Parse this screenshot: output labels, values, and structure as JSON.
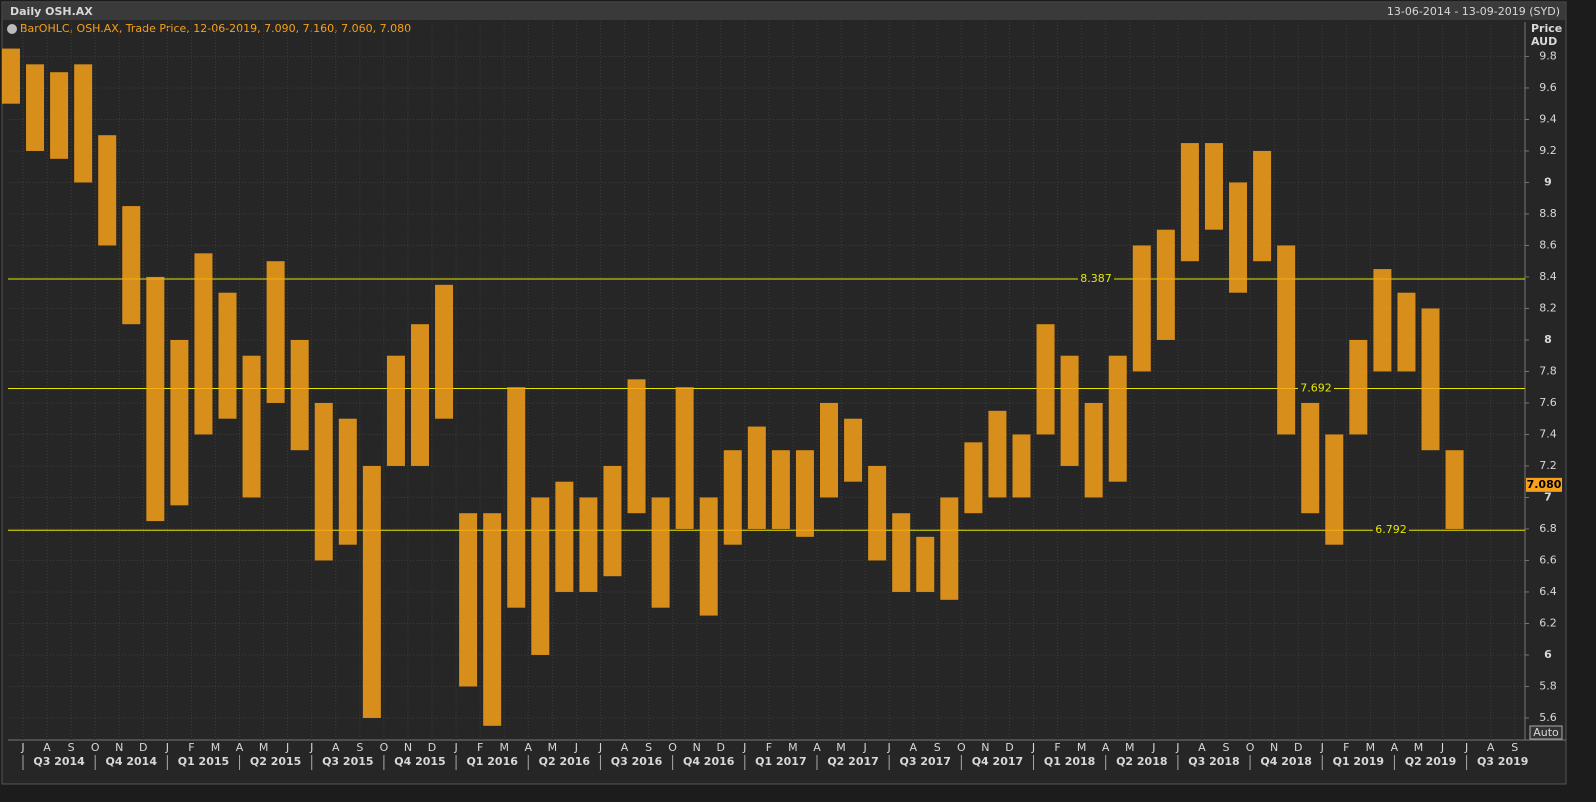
{
  "chart_data": {
    "type": "ohlc",
    "title": "Daily OSH.AX",
    "date_range": "13-06-2014 - 13-09-2019 (SYD)",
    "legend": "BarOHLC, OSH.AX, Trade Price, 12-06-2019, 7.090, 7.160, 7.060, 7.080",
    "y_title": [
      "Price",
      "AUD"
    ],
    "auto_button": "Auto",
    "x": [
      "2014-06",
      "2014-07",
      "2014-08",
      "2014-09",
      "2014-10",
      "2014-11",
      "2014-12",
      "2015-01",
      "2015-02",
      "2015-03",
      "2015-04",
      "2015-05",
      "2015-06",
      "2015-07",
      "2015-08",
      "2015-09",
      "2015-10",
      "2015-11",
      "2015-12",
      "2016-01",
      "2016-02",
      "2016-03",
      "2016-04",
      "2016-05",
      "2016-06",
      "2016-07",
      "2016-08",
      "2016-09",
      "2016-10",
      "2016-11",
      "2016-12",
      "2017-01",
      "2017-02",
      "2017-03",
      "2017-04",
      "2017-05",
      "2017-06",
      "2017-07",
      "2017-08",
      "2017-09",
      "2017-10",
      "2017-11",
      "2017-12",
      "2018-01",
      "2018-02",
      "2018-03",
      "2018-04",
      "2018-05",
      "2018-06",
      "2018-07",
      "2018-08",
      "2018-09",
      "2018-10",
      "2018-11",
      "2018-12",
      "2019-01",
      "2019-02",
      "2019-03",
      "2019-04",
      "2019-05",
      "2019-06"
    ],
    "series": [
      {
        "color": "#f7a11a",
        "high": [
          9.85,
          9.75,
          9.7,
          9.75,
          9.3,
          8.85,
          8.4,
          8.0,
          8.55,
          8.3,
          7.9,
          8.5,
          8.0,
          7.6,
          7.5,
          7.2,
          7.9,
          8.1,
          8.35,
          6.9,
          6.9,
          7.7,
          7.0,
          7.1,
          7.0,
          7.2,
          7.75,
          7.0,
          7.7,
          7.0,
          7.3,
          7.45,
          7.3,
          7.3,
          7.6,
          7.5,
          7.2,
          6.9,
          6.75,
          7.0,
          7.35,
          7.55,
          7.4,
          8.1,
          7.9,
          7.6,
          7.9,
          8.6,
          8.7,
          9.25,
          9.25,
          9.0,
          9.2,
          8.6,
          7.6,
          7.4,
          8.0,
          8.45,
          8.3,
          8.2,
          7.3
        ],
        "low": [
          9.5,
          9.2,
          9.15,
          9.0,
          8.6,
          8.1,
          6.85,
          6.95,
          7.4,
          7.5,
          7.0,
          7.6,
          7.3,
          6.6,
          6.7,
          5.6,
          7.2,
          7.2,
          7.5,
          5.8,
          5.55,
          6.3,
          6.0,
          6.4,
          6.4,
          6.5,
          6.9,
          6.3,
          6.8,
          6.25,
          6.7,
          6.8,
          6.8,
          6.75,
          7.0,
          7.1,
          6.6,
          6.4,
          6.4,
          6.35,
          6.9,
          7.0,
          7.0,
          7.4,
          7.2,
          7.0,
          7.1,
          7.8,
          8.0,
          8.5,
          8.7,
          8.3,
          8.5,
          7.4,
          6.9,
          6.7,
          7.4,
          7.8,
          7.8,
          7.3,
          6.8
        ]
      }
    ],
    "levels": [
      8.387,
      7.692,
      6.792
    ],
    "last": {
      "value": 7.08,
      "label": "7.080"
    },
    "ylim": [
      5.46,
      9.86
    ],
    "yticks": [
      5.6,
      5.8,
      6,
      6.2,
      6.4,
      6.6,
      6.8,
      7,
      7.2,
      7.4,
      7.6,
      7.8,
      8,
      8.2,
      8.4,
      8.6,
      8.8,
      9,
      9.2,
      9.4,
      9.6,
      9.8
    ],
    "month_labels": [
      "J",
      "A",
      "S",
      "O",
      "N",
      "D",
      "J",
      "F",
      "M",
      "A",
      "M",
      "J",
      "J",
      "A",
      "S",
      "O",
      "N",
      "D",
      "J",
      "F",
      "M",
      "A",
      "M",
      "J",
      "J",
      "A",
      "S",
      "O",
      "N",
      "D",
      "J",
      "F",
      "M",
      "A",
      "M",
      "J",
      "J",
      "A",
      "S",
      "O",
      "N",
      "D",
      "J",
      "F",
      "M",
      "A",
      "M",
      "J",
      "J",
      "A",
      "S",
      "O",
      "N",
      "D",
      "J",
      "F",
      "M",
      "A",
      "M",
      "J",
      "J",
      "A",
      "S"
    ],
    "quarter_labels": [
      "Q3 2014",
      "Q4 2014",
      "Q1 2015",
      "Q2 2015",
      "Q3 2015",
      "Q4 2015",
      "Q1 2016",
      "Q2 2016",
      "Q3 2016",
      "Q4 2016",
      "Q1 2017",
      "Q2 2017",
      "Q3 2017",
      "Q4 2017",
      "Q1 2018",
      "Q2 2018",
      "Q3 2018",
      "Q4 2018",
      "Q1 2019",
      "Q2 2019",
      "Q3 2019"
    ],
    "grid": true
  }
}
